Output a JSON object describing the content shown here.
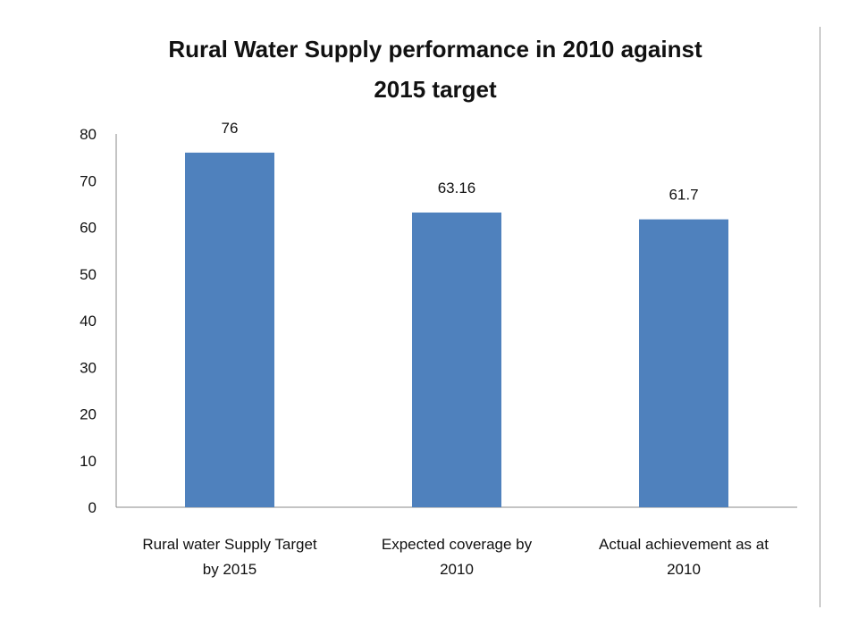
{
  "chart_data": {
    "type": "bar",
    "title_lines": [
      "Rural Water Supply performance  in 2010 against",
      "2015 target"
    ],
    "categories": [
      [
        "Rural water Supply Target",
        "by 2015"
      ],
      [
        "Expected coverage by",
        "2010"
      ],
      [
        "Actual achievement as at",
        "2010"
      ]
    ],
    "values": [
      76,
      63.16,
      61.7
    ],
    "data_labels": [
      "76",
      "63.16",
      "61.7"
    ],
    "yticks": [
      "0",
      "10",
      "20",
      "30",
      "40",
      "50",
      "60",
      "70",
      "80"
    ],
    "ylim": [
      0,
      80
    ],
    "xlabel": "",
    "ylabel": "",
    "grid": false,
    "legend": "none",
    "bar_color": "#4f81bd"
  }
}
